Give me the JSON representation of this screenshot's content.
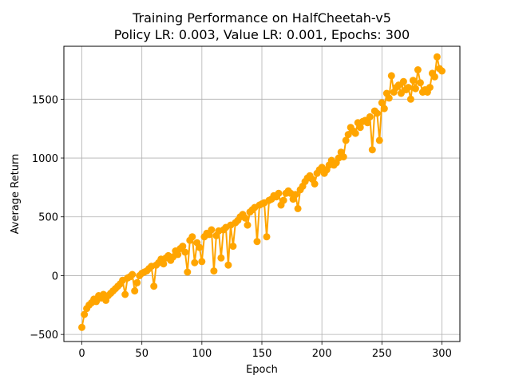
{
  "chart_data": {
    "type": "line",
    "title": "Training Performance on HalfCheetah-v5",
    "subtitle": "Policy LR: 0.003, Value LR: 0.001, Epochs: 300",
    "xlabel": "Epoch",
    "ylabel": "Average Return",
    "xlim": [
      -15,
      315
    ],
    "ylim": [
      -560,
      1950
    ],
    "xticks": [
      0,
      50,
      100,
      150,
      200,
      250,
      300
    ],
    "yticks": [
      -500,
      0,
      500,
      1000,
      1500
    ],
    "grid": true,
    "series_color": "#ffa500",
    "marker": "circle",
    "series": [
      {
        "x": [
          0,
          2,
          4,
          6,
          8,
          10,
          12,
          14,
          16,
          18,
          20,
          22,
          24,
          26,
          28,
          30,
          32,
          34,
          36,
          38,
          40,
          42,
          44,
          46,
          48,
          50,
          52,
          54,
          56,
          58,
          60,
          62,
          64,
          66,
          68,
          70,
          72,
          74,
          76,
          78,
          80,
          82,
          84,
          86,
          88,
          90,
          92,
          94,
          96,
          98,
          100,
          102,
          104,
          106,
          108,
          110,
          112,
          114,
          116,
          118,
          120,
          122,
          124,
          126,
          128,
          130,
          132,
          134,
          136,
          138,
          140,
          142,
          144,
          146,
          148,
          150,
          152,
          154,
          156,
          158,
          160,
          162,
          164,
          166,
          168,
          170,
          172,
          174,
          176,
          178,
          180,
          182,
          184,
          186,
          188,
          190,
          192,
          194,
          196,
          198,
          200,
          202,
          204,
          206,
          208,
          210,
          212,
          214,
          216,
          218,
          220,
          222,
          224,
          226,
          228,
          230,
          232,
          234,
          236,
          238,
          240,
          242,
          244,
          246,
          248,
          250,
          252,
          254,
          256,
          258,
          260,
          262,
          264,
          266,
          268,
          270,
          272,
          274,
          276,
          278,
          280,
          282,
          284,
          286,
          288,
          290,
          292,
          294,
          296,
          298,
          300
        ],
        "y": [
          -440,
          -330,
          -280,
          -250,
          -230,
          -200,
          -220,
          -170,
          -190,
          -160,
          -210,
          -170,
          -150,
          -130,
          -110,
          -90,
          -70,
          -40,
          -160,
          -20,
          -10,
          10,
          -130,
          -60,
          0,
          20,
          30,
          40,
          60,
          80,
          -90,
          90,
          110,
          140,
          100,
          150,
          170,
          130,
          160,
          210,
          180,
          230,
          250,
          200,
          30,
          300,
          330,
          110,
          280,
          240,
          120,
          330,
          360,
          350,
          390,
          40,
          340,
          380,
          150,
          390,
          410,
          90,
          430,
          250,
          450,
          470,
          500,
          520,
          490,
          430,
          540,
          560,
          580,
          290,
          600,
          610,
          620,
          330,
          640,
          650,
          680,
          670,
          700,
          600,
          640,
          700,
          720,
          700,
          650,
          690,
          570,
          730,
          760,
          800,
          830,
          850,
          820,
          780,
          870,
          900,
          920,
          870,
          900,
          940,
          980,
          940,
          960,
          1000,
          1050,
          1010,
          1150,
          1200,
          1260,
          1230,
          1210,
          1300,
          1260,
          1310,
          1320,
          1300,
          1350,
          1070,
          1400,
          1380,
          1150,
          1470,
          1420,
          1550,
          1510,
          1700,
          1560,
          1600,
          1620,
          1550,
          1650,
          1580,
          1600,
          1500,
          1660,
          1590,
          1750,
          1640,
          1560,
          1580,
          1560,
          1600,
          1720,
          1690,
          1860,
          1760,
          1740
        ]
      }
    ]
  }
}
